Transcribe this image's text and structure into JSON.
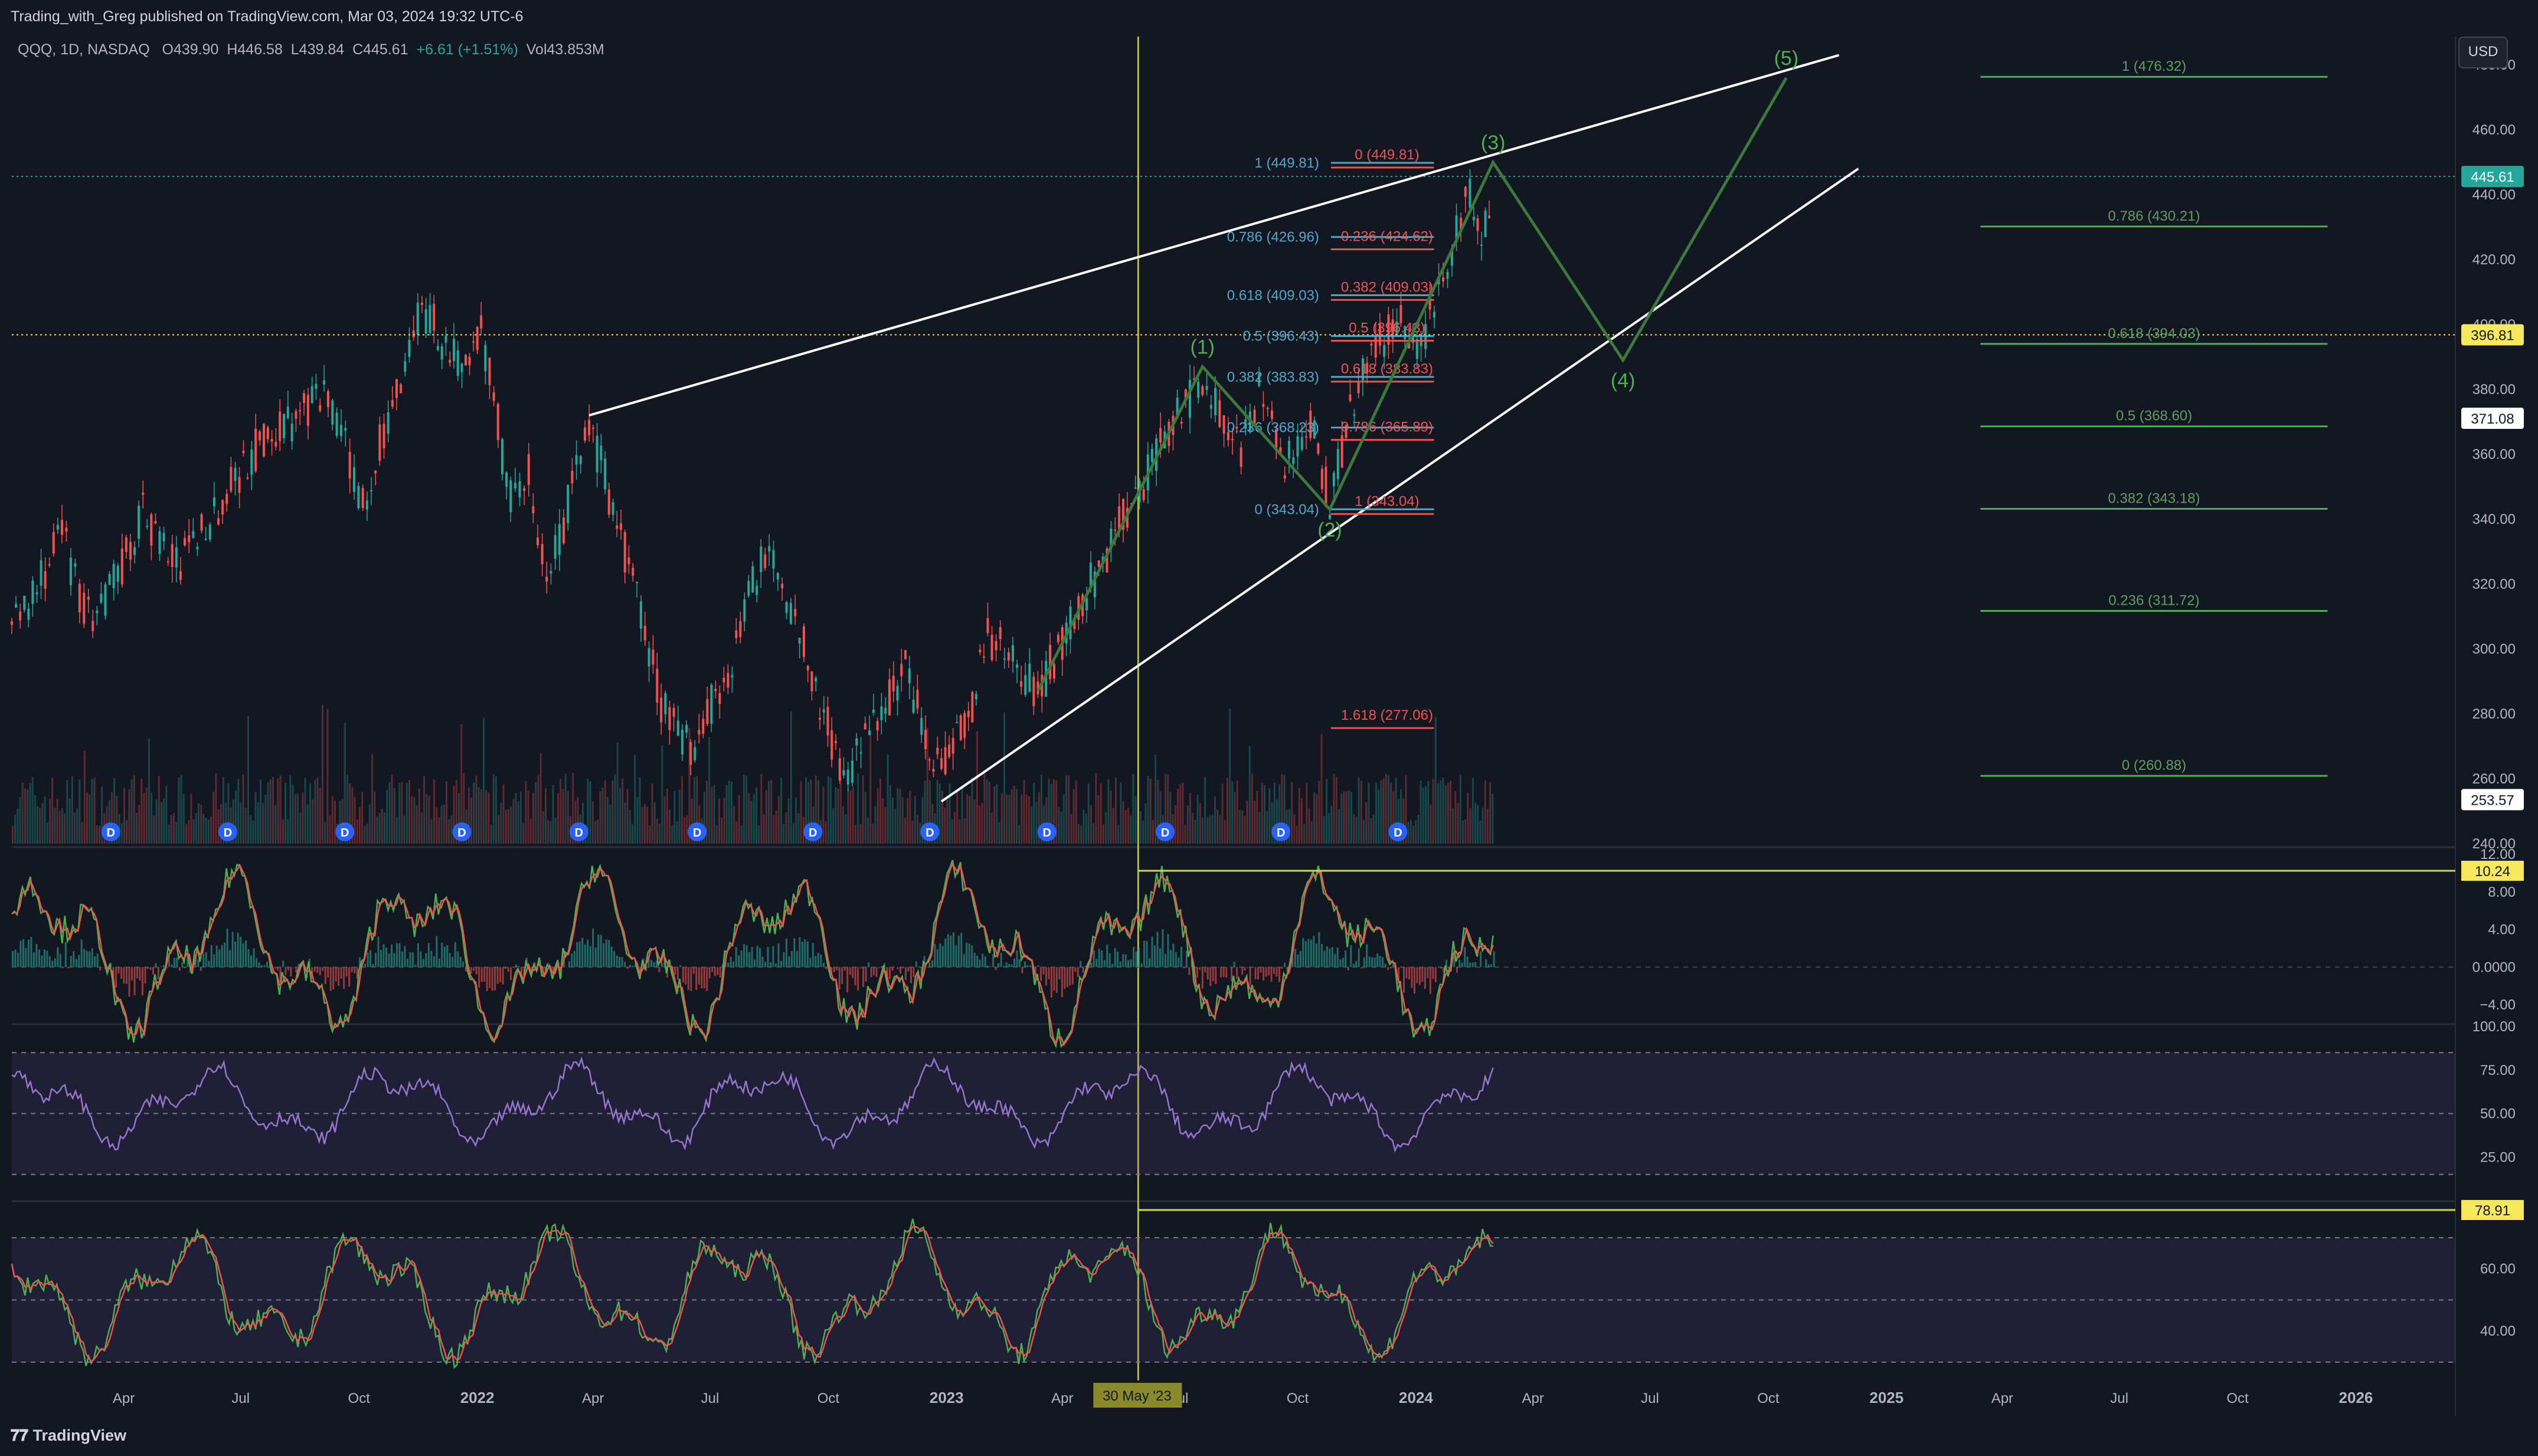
{
  "header": {
    "publisher": "Trading_with_Greg published on TradingView.com, Mar 03, 2024 19:32 UTC-6"
  },
  "legend": {
    "symbol": "QQQ, 1D, NASDAQ",
    "o": "O439.90",
    "h": "H446.58",
    "l": "L439.84",
    "c": "C445.61",
    "chg": "+6.61 (+1.51%)",
    "vol": "Vol43.853M"
  },
  "footer": {
    "brand": "TradingView"
  },
  "currency_button": "USD",
  "colors": {
    "background": "#131722",
    "up": "#26a69a",
    "down": "#ef5350",
    "fib_blue": "#4fa8c9",
    "fib_red": "#ef5350",
    "fib_green": "#4caf50",
    "wave_green": "#3b7a3b",
    "yellow": "#cddc39",
    "rsi_purple": "#9575cd",
    "channel_white": "#ffffff"
  },
  "chart_data": {
    "type": "line",
    "symbol": "QQQ",
    "x_ticks": [
      "Apr",
      "Jul",
      "Oct",
      "2022",
      "Apr",
      "Jul",
      "Oct",
      "2023",
      "Apr",
      "Jul",
      "Oct",
      "2024",
      "Apr",
      "Jul",
      "Oct",
      "2025",
      "Apr",
      "Jul",
      "Oct",
      "2026"
    ],
    "x_tick_dates": [
      "2021-04-01",
      "2021-07-01",
      "2021-10-01",
      "2022-01-01",
      "2022-04-01",
      "2022-07-01",
      "2022-10-01",
      "2023-01-01",
      "2023-04-01",
      "2023-07-01",
      "2023-10-01",
      "2024-01-01",
      "2024-04-01",
      "2024-07-01",
      "2024-10-01",
      "2025-01-01",
      "2025-04-01",
      "2025-07-01",
      "2025-10-01",
      "2026-01-01"
    ],
    "price_axis": {
      "ticks": [
        480,
        460,
        440,
        420,
        400,
        380,
        360,
        340,
        320,
        300,
        280,
        260,
        240
      ],
      "ylim": [
        232,
        486
      ]
    },
    "price_series": {
      "name": "QQQ",
      "x": [
        "2021-01-04",
        "2021-02-12",
        "2021-03-08",
        "2021-04-16",
        "2021-05-12",
        "2021-06-30",
        "2021-07-19",
        "2021-09-07",
        "2021-10-04",
        "2021-11-19",
        "2021-12-20",
        "2022-01-04",
        "2022-01-27",
        "2022-02-10",
        "2022-02-24",
        "2022-03-29",
        "2022-05-02",
        "2022-05-24",
        "2022-06-16",
        "2022-07-15",
        "2022-08-16",
        "2022-09-12",
        "2022-10-13",
        "2022-11-02",
        "2022-11-30",
        "2022-12-28",
        "2023-01-18",
        "2023-02-02",
        "2023-03-13",
        "2023-05-31",
        "2023-07-19",
        "2023-08-18",
        "2023-09-01",
        "2023-09-21",
        "2023-10-11",
        "2023-10-26",
        "2023-11-14",
        "2023-12-14",
        "2024-01-05",
        "2024-01-29",
        "2024-02-12",
        "2024-02-21",
        "2024-03-01"
      ],
      "y": [
        305,
        335,
        305,
        342,
        325,
        354,
        365,
        378,
        345,
        406,
        385,
        400,
        345,
        355,
        318,
        370,
        320,
        284,
        270,
        294,
        335,
        300,
        260,
        275,
        293,
        262,
        278,
        305,
        287,
        350,
        385,
        360,
        380,
        355,
        370,
        346,
        378,
        402,
        395,
        425,
        440,
        425,
        445.61
      ]
    },
    "fib_retracement_left": [
      {
        "label": "1 (449.81)",
        "value": 449.81
      },
      {
        "label": "0.786 (426.96)",
        "value": 426.96
      },
      {
        "label": "0.618 (409.03)",
        "value": 409.03
      },
      {
        "label": "0.5 (396.43)",
        "value": 396.43
      },
      {
        "label": "0.382 (383.83)",
        "value": 383.83
      },
      {
        "label": "0.236 (368.23)",
        "value": 368.23
      },
      {
        "label": "0 (343.04)",
        "value": 343.04
      }
    ],
    "fib_extension_red": [
      {
        "label": "0 (449.81)",
        "value": 449.81
      },
      {
        "label": "0.236 (424.62)",
        "value": 424.62
      },
      {
        "label": "0.382 (409.03)",
        "value": 409.03
      },
      {
        "label": "0.5 (396.43)",
        "value": 396.43
      },
      {
        "label": "0.618 (383.83)",
        "value": 383.83
      },
      {
        "label": "0.786 (365.89)",
        "value": 365.89
      },
      {
        "label": "1 (343.04)",
        "value": 343.04
      },
      {
        "label": "1.618 (277.06)",
        "value": 277.06
      }
    ],
    "fib_projection_green": [
      {
        "label": "1 (476.32)",
        "value": 476.32
      },
      {
        "label": "0.786 (430.21)",
        "value": 430.21
      },
      {
        "label": "0.618 (394.03)",
        "value": 394.03
      },
      {
        "label": "0.5 (368.60)",
        "value": 368.6
      },
      {
        "label": "0.382 (343.18)",
        "value": 343.18
      },
      {
        "label": "0.236 (311.72)",
        "value": 311.72
      },
      {
        "label": "0 (260.88)",
        "value": 260.88
      }
    ],
    "elliott_waves": [
      {
        "label": "(1)",
        "date": "2023-07-19",
        "value": 387
      },
      {
        "label": "(2)",
        "date": "2023-10-26",
        "value": 343
      },
      {
        "label": "(3)",
        "date": "2024-03-01",
        "value": 450
      },
      {
        "label": "(4)",
        "date": "2024-06-10",
        "value": 389
      },
      {
        "label": "(5)",
        "date": "2024-10-15",
        "value": 476
      }
    ],
    "wave_path": [
      {
        "date": "2023-03-13",
        "value": 287
      },
      {
        "date": "2023-07-19",
        "value": 387
      },
      {
        "date": "2023-10-26",
        "value": 343
      },
      {
        "date": "2024-03-01",
        "value": 450
      },
      {
        "date": "2024-06-10",
        "value": 389
      },
      {
        "date": "2024-10-15",
        "value": 476
      }
    ],
    "channel_lines": [
      {
        "from_date": "2022-03-29",
        "from_value": 372,
        "to_date": "2024-11-25",
        "to_value": 483
      },
      {
        "from_date": "2022-12-28",
        "from_value": 253,
        "to_date": "2024-12-10",
        "to_value": 448
      }
    ],
    "horizontal_lines": [
      {
        "value": 445.61,
        "style": "dotted-teal"
      },
      {
        "value": 396.81,
        "style": "dotted-yellow"
      }
    ],
    "vertical_marker": {
      "date": "2023-05-30",
      "label": "30 May '23"
    },
    "price_badges": [
      {
        "value": 445.61,
        "label": "445.61",
        "bg": "#26a69a",
        "fg": "#ffffff"
      },
      {
        "value": 396.81,
        "label": "396.81",
        "bg": "#f5e85b",
        "fg": "#131722"
      },
      {
        "value": 371.08,
        "label": "371.08",
        "bg": "#ffffff",
        "fg": "#131722"
      },
      {
        "value": 253.57,
        "label": "253.57",
        "bg": "#ffffff",
        "fg": "#131722"
      }
    ],
    "dividend_marker": "D",
    "dividend_dates": [
      "2021-03-22",
      "2021-06-21",
      "2021-09-20",
      "2021-12-20",
      "2022-03-21",
      "2022-06-21",
      "2022-09-19",
      "2022-12-19",
      "2023-03-20",
      "2023-06-20",
      "2023-09-18",
      "2023-12-18"
    ],
    "macd": {
      "ticks": [
        "12.00",
        "8.00",
        "4.00",
        "0.0000",
        "−4.00"
      ],
      "tick_values": [
        12,
        8,
        4,
        0,
        -4
      ],
      "ylim": [
        -6,
        12.5
      ],
      "badge": "10.24",
      "badge_value": 10.24
    },
    "rsi": {
      "ticks": [
        "100.00",
        "75.00",
        "50.00",
        "25.00"
      ],
      "tick_values": [
        100,
        75,
        50,
        25
      ],
      "ylim": [
        0,
        100
      ],
      "band": [
        15,
        85
      ]
    },
    "stoch_rsi": {
      "ticks": [
        "60.00",
        "40.00"
      ],
      "tick_values": [
        60,
        40
      ],
      "ylim": [
        26,
        81
      ],
      "band": [
        30,
        70
      ],
      "badge": "78.91",
      "badge_value": 78.91
    }
  }
}
